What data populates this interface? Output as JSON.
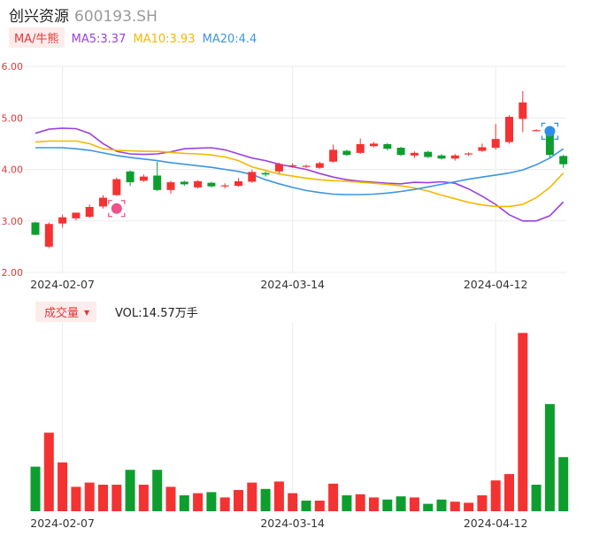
{
  "header": {
    "name": "创兴资源",
    "code": "600193.SH"
  },
  "ma_legend": {
    "tag": "MA/牛熊",
    "items": [
      {
        "label": "MA5:3.37",
        "color": "#9b40e0"
      },
      {
        "label": "MA10:3.93",
        "color": "#f5b800"
      },
      {
        "label": "MA20:4.4",
        "color": "#3d95e0"
      }
    ]
  },
  "volume_legend": {
    "tag": "成交量",
    "value": "VOL:14.57万手"
  },
  "colors": {
    "up": "#f53232",
    "down": "#0d9e2e",
    "grid": "#ececec",
    "axis_text": "#e0393a"
  },
  "chart_data": {
    "type": "candlestick",
    "ylim": [
      2.0,
      6.0
    ],
    "y_ticks": [
      "6.00",
      "5.00",
      "4.00",
      "3.00",
      "2.00"
    ],
    "x_tick_labels": [
      {
        "index": 2,
        "label": "2024-02-07"
      },
      {
        "index": 19,
        "label": "2024-03-14"
      },
      {
        "index": 34,
        "label": "2024-04-12"
      }
    ],
    "candles": [
      {
        "o": 2.97,
        "h": 2.98,
        "c": 2.73,
        "l": 2.72
      },
      {
        "o": 2.5,
        "h": 2.97,
        "c": 2.94,
        "l": 2.47
      },
      {
        "o": 2.95,
        "h": 3.12,
        "c": 3.07,
        "l": 2.87
      },
      {
        "o": 3.05,
        "h": 3.15,
        "c": 3.16,
        "l": 3.01
      },
      {
        "o": 3.08,
        "h": 3.32,
        "c": 3.27,
        "l": 3.06
      },
      {
        "o": 3.28,
        "h": 3.5,
        "c": 3.45,
        "l": 3.24
      },
      {
        "o": 3.5,
        "h": 3.84,
        "c": 3.81,
        "l": 3.49
      },
      {
        "o": 3.96,
        "h": 3.98,
        "c": 3.75,
        "l": 3.68
      },
      {
        "o": 3.78,
        "h": 3.9,
        "c": 3.86,
        "l": 3.76
      },
      {
        "o": 3.88,
        "h": 4.15,
        "c": 3.6,
        "l": 3.58
      },
      {
        "o": 3.6,
        "h": 3.78,
        "c": 3.75,
        "l": 3.53
      },
      {
        "o": 3.76,
        "h": 3.78,
        "c": 3.71,
        "l": 3.68
      },
      {
        "o": 3.65,
        "h": 3.79,
        "c": 3.77,
        "l": 3.63
      },
      {
        "o": 3.74,
        "h": 3.76,
        "c": 3.67,
        "l": 3.65
      },
      {
        "o": 3.68,
        "h": 3.73,
        "c": 3.69,
        "l": 3.63
      },
      {
        "o": 3.68,
        "h": 3.83,
        "c": 3.77,
        "l": 3.66
      },
      {
        "o": 3.76,
        "h": 3.99,
        "c": 3.95,
        "l": 3.74
      },
      {
        "o": 3.93,
        "h": 3.96,
        "c": 3.9,
        "l": 3.86
      },
      {
        "o": 3.96,
        "h": 4.13,
        "c": 4.1,
        "l": 3.92
      },
      {
        "o": 4.06,
        "h": 4.12,
        "c": 4.08,
        "l": 4.03
      },
      {
        "o": 4.05,
        "h": 4.09,
        "c": 4.07,
        "l": 4.03
      },
      {
        "o": 4.03,
        "h": 4.15,
        "c": 4.12,
        "l": 4.01
      },
      {
        "o": 4.15,
        "h": 4.48,
        "c": 4.38,
        "l": 4.13
      },
      {
        "o": 4.36,
        "h": 4.38,
        "c": 4.28,
        "l": 4.26
      },
      {
        "o": 4.32,
        "h": 4.6,
        "c": 4.49,
        "l": 4.3
      },
      {
        "o": 4.45,
        "h": 4.53,
        "c": 4.5,
        "l": 4.43
      },
      {
        "o": 4.49,
        "h": 4.51,
        "c": 4.4,
        "l": 4.37
      },
      {
        "o": 4.42,
        "h": 4.44,
        "c": 4.28,
        "l": 4.26
      },
      {
        "o": 4.27,
        "h": 4.35,
        "c": 4.32,
        "l": 4.22
      },
      {
        "o": 4.34,
        "h": 4.36,
        "c": 4.24,
        "l": 4.22
      },
      {
        "o": 4.27,
        "h": 4.3,
        "c": 4.21,
        "l": 4.19
      },
      {
        "o": 4.21,
        "h": 4.3,
        "c": 4.27,
        "l": 4.17
      },
      {
        "o": 4.29,
        "h": 4.33,
        "c": 4.31,
        "l": 4.26
      },
      {
        "o": 4.36,
        "h": 4.5,
        "c": 4.43,
        "l": 4.34
      },
      {
        "o": 4.42,
        "h": 4.88,
        "c": 4.59,
        "l": 4.38
      },
      {
        "o": 4.53,
        "h": 5.05,
        "c": 5.02,
        "l": 4.5
      },
      {
        "o": 4.98,
        "h": 5.52,
        "c": 5.3,
        "l": 4.72
      },
      {
        "o": 4.76,
        "h": 4.78,
        "c": 4.76,
        "l": 4.74
      },
      {
        "o": 4.72,
        "h": 4.75,
        "c": 4.28,
        "l": 4.23
      },
      {
        "o": 4.26,
        "h": 4.28,
        "c": 4.1,
        "l": 4.03
      }
    ],
    "volume": [
      {
        "v": 0.42,
        "up": false
      },
      {
        "v": 0.74,
        "up": true
      },
      {
        "v": 0.46,
        "up": true
      },
      {
        "v": 0.23,
        "up": true
      },
      {
        "v": 0.27,
        "up": true
      },
      {
        "v": 0.25,
        "up": true
      },
      {
        "v": 0.25,
        "up": true
      },
      {
        "v": 0.39,
        "up": false
      },
      {
        "v": 0.25,
        "up": true
      },
      {
        "v": 0.39,
        "up": false
      },
      {
        "v": 0.23,
        "up": true
      },
      {
        "v": 0.15,
        "up": false
      },
      {
        "v": 0.17,
        "up": true
      },
      {
        "v": 0.18,
        "up": false
      },
      {
        "v": 0.13,
        "up": true
      },
      {
        "v": 0.2,
        "up": true
      },
      {
        "v": 0.27,
        "up": true
      },
      {
        "v": 0.21,
        "up": false
      },
      {
        "v": 0.28,
        "up": true
      },
      {
        "v": 0.17,
        "up": true
      },
      {
        "v": 0.1,
        "up": false
      },
      {
        "v": 0.1,
        "up": true
      },
      {
        "v": 0.26,
        "up": true
      },
      {
        "v": 0.15,
        "up": false
      },
      {
        "v": 0.16,
        "up": true
      },
      {
        "v": 0.13,
        "up": true
      },
      {
        "v": 0.11,
        "up": false
      },
      {
        "v": 0.14,
        "up": false
      },
      {
        "v": 0.13,
        "up": true
      },
      {
        "v": 0.07,
        "up": false
      },
      {
        "v": 0.11,
        "up": false
      },
      {
        "v": 0.09,
        "up": true
      },
      {
        "v": 0.08,
        "up": true
      },
      {
        "v": 0.15,
        "up": true
      },
      {
        "v": 0.29,
        "up": true
      },
      {
        "v": 0.35,
        "up": true
      },
      {
        "v": 1.68,
        "up": true
      },
      {
        "v": 0.25,
        "up": false
      },
      {
        "v": 1.01,
        "up": false
      },
      {
        "v": 0.51,
        "up": false
      }
    ],
    "series": [
      {
        "name": "MA5",
        "color": "#9b40e0",
        "values": [
          4.7,
          4.78,
          4.8,
          4.79,
          4.7,
          4.5,
          4.35,
          4.3,
          4.29,
          4.3,
          4.34,
          4.4,
          4.41,
          4.42,
          4.38,
          4.3,
          4.22,
          4.17,
          4.1,
          4.05,
          4.0,
          3.92,
          3.85,
          3.8,
          3.77,
          3.75,
          3.73,
          3.72,
          3.75,
          3.74,
          3.76,
          3.73,
          3.62,
          3.48,
          3.32,
          3.12,
          3.0,
          3.0,
          3.1,
          3.37
        ]
      },
      {
        "name": "MA10",
        "color": "#f5b800",
        "values": [
          4.53,
          4.55,
          4.55,
          4.55,
          4.5,
          4.4,
          4.37,
          4.36,
          4.35,
          4.35,
          4.33,
          4.31,
          4.3,
          4.28,
          4.24,
          4.17,
          4.05,
          3.98,
          3.91,
          3.87,
          3.83,
          3.8,
          3.78,
          3.77,
          3.75,
          3.73,
          3.71,
          3.68,
          3.64,
          3.58,
          3.5,
          3.43,
          3.36,
          3.31,
          3.28,
          3.28,
          3.32,
          3.45,
          3.65,
          3.93
        ]
      },
      {
        "name": "MA20",
        "color": "#3d95e0",
        "values": [
          4.42,
          4.42,
          4.42,
          4.4,
          4.37,
          4.32,
          4.27,
          4.23,
          4.2,
          4.17,
          4.13,
          4.1,
          4.07,
          4.04,
          4.0,
          3.96,
          3.9,
          3.8,
          3.72,
          3.65,
          3.59,
          3.55,
          3.52,
          3.51,
          3.51,
          3.52,
          3.54,
          3.57,
          3.61,
          3.66,
          3.71,
          3.76,
          3.81,
          3.85,
          3.89,
          3.93,
          3.99,
          4.09,
          4.22,
          4.4
        ]
      }
    ]
  }
}
